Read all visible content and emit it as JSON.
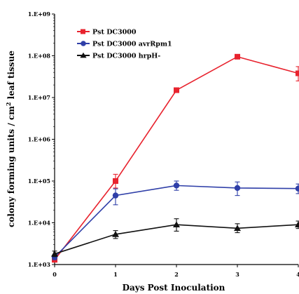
{
  "chart_data": {
    "type": "line",
    "title": "",
    "xlabel": "Days Post Inoculation",
    "ylabel": "colony forming units / cm² leaf tissue",
    "ylabel_main": "colony forming units / cm",
    "ylabel_sup": "2",
    "ylabel_tail": " leaf tissue",
    "x": [
      0,
      1,
      2,
      3,
      4
    ],
    "xlim": [
      0,
      4
    ],
    "ylim": [
      1000,
      1000000000
    ],
    "yscale": "log",
    "y_ticks": [
      1000,
      10000,
      100000,
      1000000,
      10000000,
      100000000,
      1000000000
    ],
    "y_tick_labels": [
      "1.E+03",
      "1.E+04",
      "1.E+05",
      "1.E+06",
      "1.E+07",
      "1.E+08",
      "1.E+09"
    ],
    "x_tick_labels": [
      "0",
      "1",
      "2",
      "3",
      "4"
    ],
    "grid": false,
    "legend_position": "top-left",
    "series": [
      {
        "name": "Pst DC3000",
        "color": "#e8232e",
        "marker": "square",
        "values": [
          1300,
          100000,
          15000000,
          95000000,
          38000000
        ],
        "err_low": [
          1150,
          68000,
          14000000,
          88000000,
          25000000
        ],
        "err_high": [
          1500,
          145000,
          16000000,
          102000000,
          55000000
        ]
      },
      {
        "name": "Pst DC3000 avrRpm1",
        "color": "#2f3fa8",
        "marker": "circle",
        "values": [
          1500,
          45000,
          78000,
          68000,
          66000
        ],
        "err_low": [
          1300,
          27000,
          60000,
          45000,
          50000
        ],
        "err_high": [
          1700,
          65000,
          100000,
          95000,
          85000
        ]
      },
      {
        "name": "Pst DC3000 hrpH-",
        "color": "#111111",
        "marker": "triangle",
        "values": [
          1800,
          5300,
          9000,
          7400,
          9000
        ],
        "err_low": [
          1550,
          4200,
          6300,
          5800,
          7300
        ],
        "err_high": [
          2100,
          6500,
          12500,
          9500,
          11000
        ]
      }
    ]
  }
}
